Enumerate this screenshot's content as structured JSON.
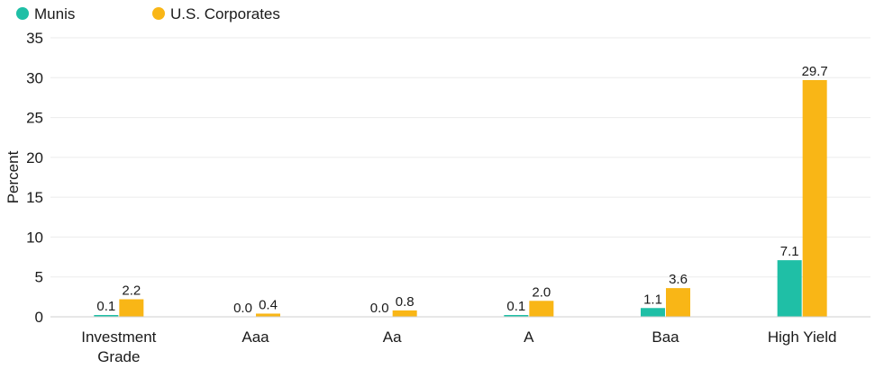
{
  "chart_data": {
    "type": "bar",
    "title": "",
    "xlabel": "",
    "ylabel": "Percent",
    "ylim": [
      0,
      35
    ],
    "yticks": [
      0,
      5,
      10,
      15,
      20,
      25,
      30,
      35
    ],
    "grid": true,
    "legend_position": "top-left",
    "categories": [
      [
        "Investment",
        "Grade"
      ],
      [
        "Aaa"
      ],
      [
        "Aa"
      ],
      [
        "A"
      ],
      [
        "Baa"
      ],
      [
        "High Yield"
      ]
    ],
    "series": [
      {
        "name": "Munis",
        "color": "#1fbfa6",
        "values": [
          0.1,
          0.0,
          0.0,
          0.1,
          1.1,
          7.1
        ],
        "labels": [
          "0.1",
          "0.0",
          "0.0",
          "0.1",
          "1.1",
          "7.1"
        ]
      },
      {
        "name": "U.S. Corporates",
        "color": "#f9b616",
        "values": [
          2.2,
          0.4,
          0.8,
          2.0,
          3.6,
          29.7
        ],
        "labels": [
          "2.2",
          "0.4",
          "0.8",
          "2.0",
          "3.6",
          "29.7"
        ]
      }
    ]
  }
}
